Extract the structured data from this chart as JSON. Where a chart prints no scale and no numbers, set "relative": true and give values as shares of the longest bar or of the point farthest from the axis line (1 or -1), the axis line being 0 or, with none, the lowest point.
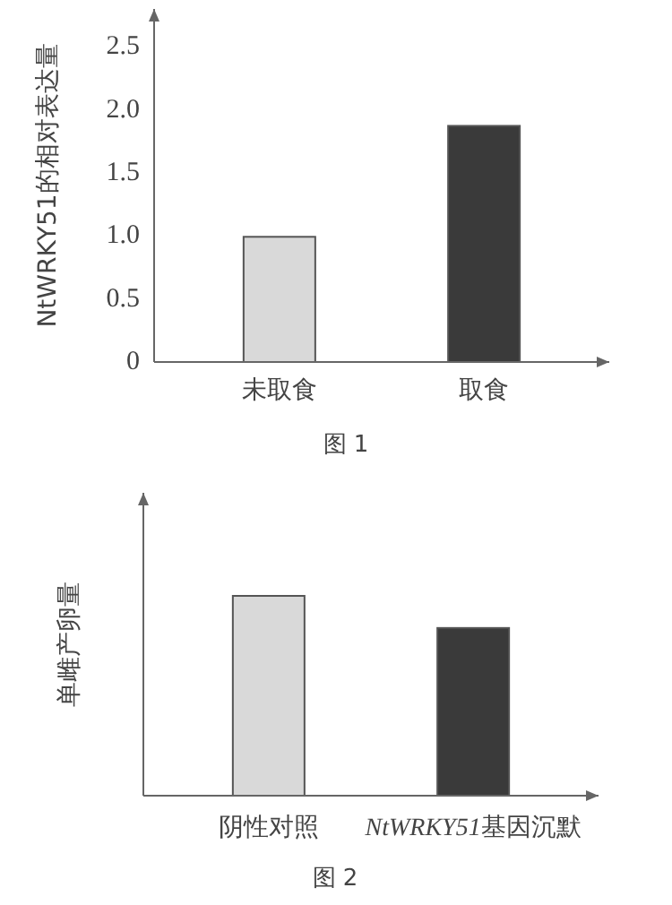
{
  "chart_data": [
    {
      "type": "bar",
      "title": "图 1",
      "ylabel": "NtWRKY51的相对表达量",
      "categories": [
        "未取食",
        "取食"
      ],
      "values": [
        1.0,
        1.88
      ],
      "colors": [
        "#d9d9d9",
        "#3a3a3a"
      ],
      "ylim": [
        0,
        2.8
      ],
      "yticks": [
        {
          "value": 0,
          "label": "0"
        },
        {
          "value": 0.5,
          "label": "0.5"
        },
        {
          "value": 1,
          "label": "1.0"
        },
        {
          "value": 1.5,
          "label": "1.5"
        },
        {
          "value": 2,
          "label": "2.0"
        },
        {
          "value": 2.5,
          "label": "2.5"
        }
      ],
      "grid": false
    },
    {
      "type": "bar",
      "title": "图 2",
      "ylabel": "单雌产卵量",
      "relative": true,
      "categories": [
        "阴性对照",
        "NtWRKY51基因沉默"
      ],
      "values": [
        1,
        0.84
      ],
      "colors": [
        "#d9d9d9",
        "#3a3a3a"
      ],
      "grid": false
    }
  ]
}
